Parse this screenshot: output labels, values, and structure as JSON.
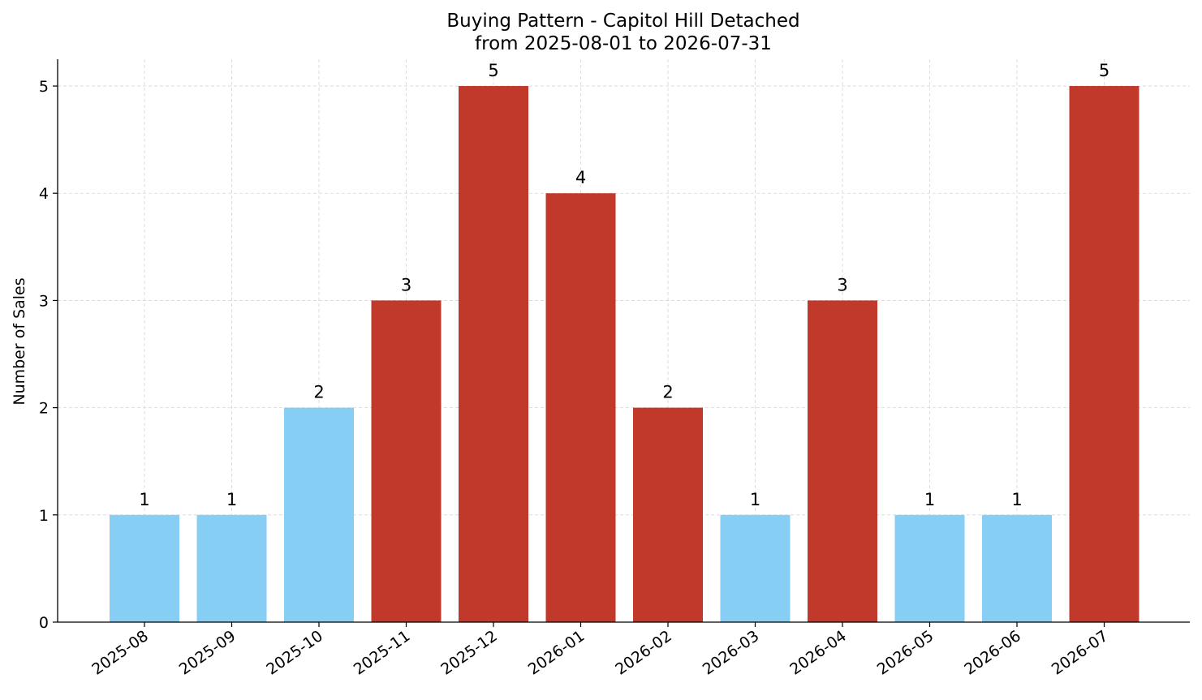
{
  "chart_data": {
    "type": "bar",
    "title": "Buying Pattern - Capitol Hill Detached",
    "subtitle": "from 2025-08-01 to 2026-07-31",
    "xlabel": "",
    "ylabel": "Number of Sales",
    "ylim": [
      0,
      5.25
    ],
    "yticks": [
      "0",
      "1",
      "2",
      "3",
      "4",
      "5"
    ],
    "grid": true,
    "categories": [
      "2025-08",
      "2025-09",
      "2025-10",
      "2025-11",
      "2025-12",
      "2026-01",
      "2026-02",
      "2026-03",
      "2026-04",
      "2026-05",
      "2026-06",
      "2026-07"
    ],
    "values": [
      1,
      1,
      2,
      3,
      5,
      4,
      2,
      1,
      3,
      1,
      1,
      5
    ],
    "bar_colors": [
      "#87CEF5",
      "#87CEF5",
      "#87CEF5",
      "#C0392B",
      "#C0392B",
      "#C0392B",
      "#C0392B",
      "#87CEF5",
      "#C0392B",
      "#87CEF5",
      "#87CEF5",
      "#C0392B"
    ],
    "colors": {
      "low": "#87CEF5",
      "high": "#C0392B"
    }
  }
}
